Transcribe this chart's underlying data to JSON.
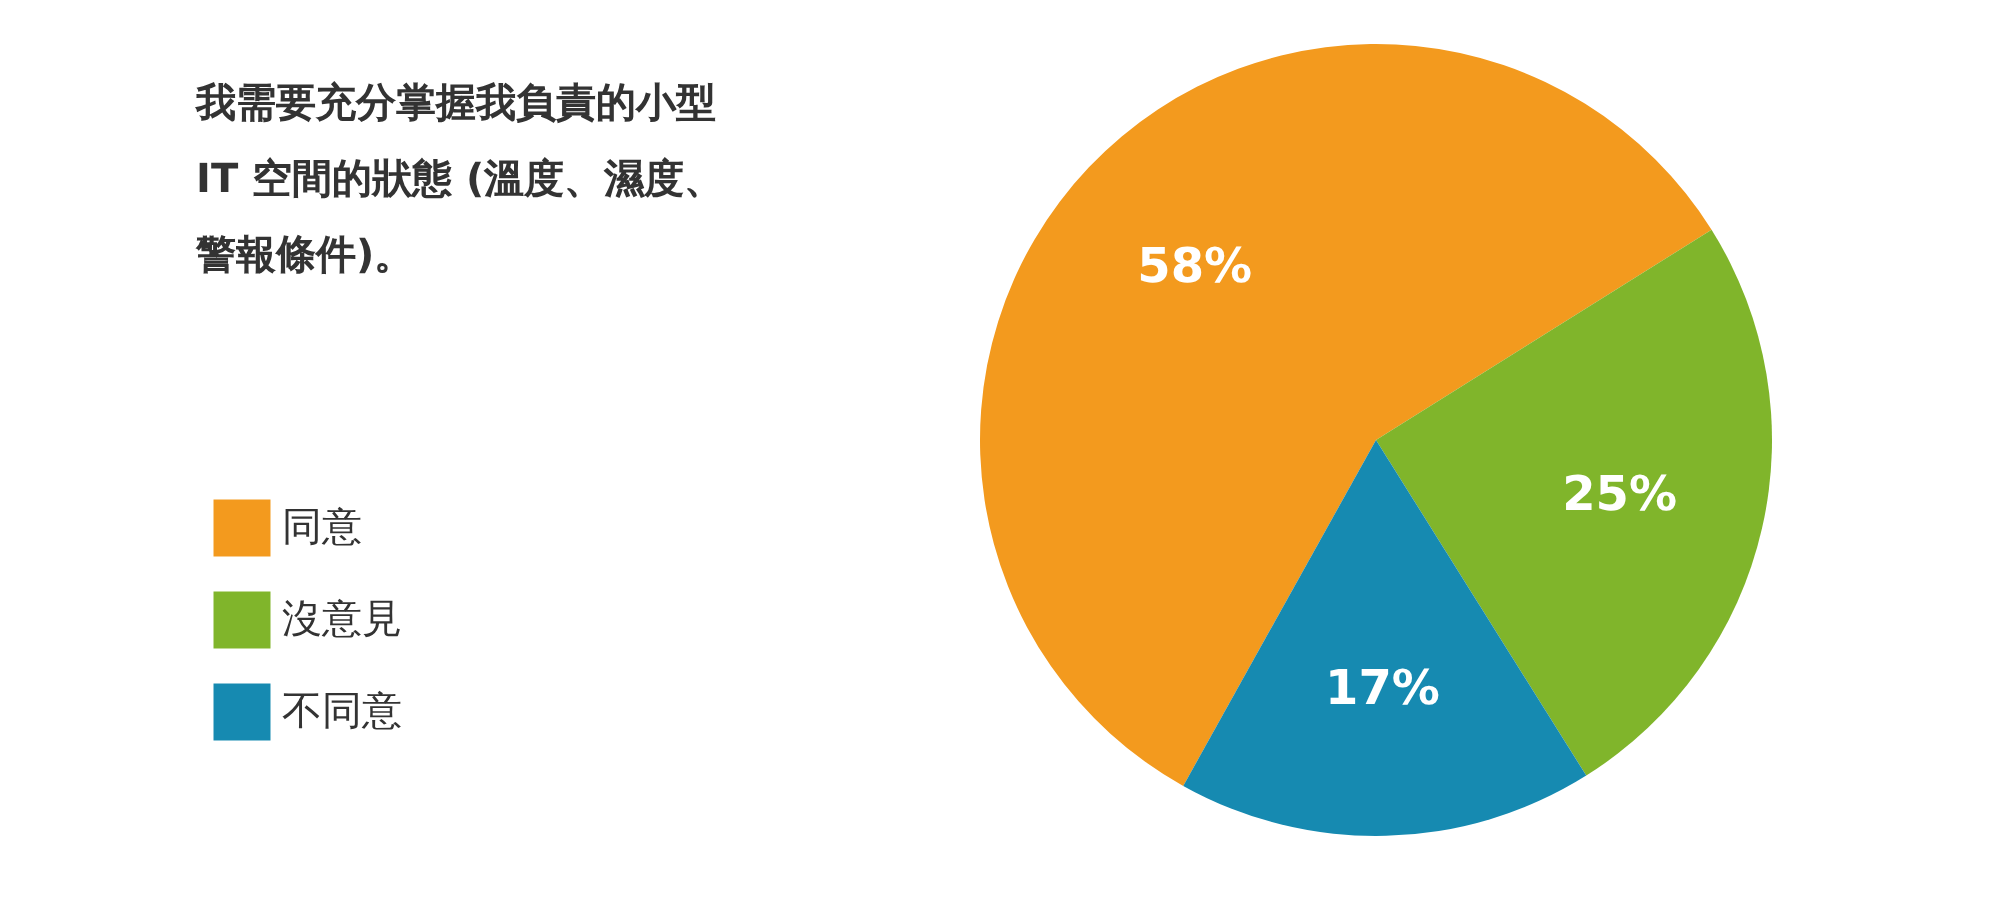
{
  "chart_data": {
    "type": "pie",
    "title": "我需要充分掌握我負責的小型 IT 空間的狀態 (溫度、濕度、警報條件)。",
    "categories": [
      "同意",
      "沒意見",
      "不同意"
    ],
    "values": [
      58,
      25,
      17
    ],
    "colors": [
      "#f39a1e",
      "#80b52b",
      "#168ab1"
    ],
    "value_labels": [
      "58%",
      "25%",
      "17%"
    ],
    "legend": "left"
  }
}
